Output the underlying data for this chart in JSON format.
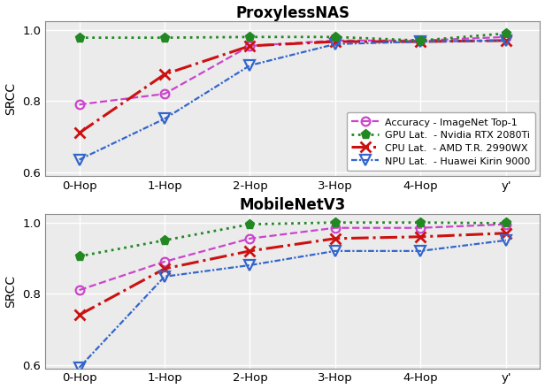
{
  "x_labels": [
    "0-Hop",
    "1-Hop",
    "2-Hop",
    "3-Hop",
    "4-Hop",
    "y'"
  ],
  "proxyless": {
    "title": "ProxylessNAS",
    "accuracy": [
      0.79,
      0.82,
      0.955,
      0.97,
      0.97,
      0.98
    ],
    "gpu_lat": [
      0.978,
      0.978,
      0.98,
      0.98,
      0.97,
      0.99
    ],
    "cpu_lat": [
      0.71,
      0.875,
      0.955,
      0.967,
      0.967,
      0.97
    ],
    "npu_lat": [
      0.635,
      0.75,
      0.9,
      0.96,
      0.967,
      0.97
    ]
  },
  "mobilenetv3": {
    "title": "MobileNetV3",
    "accuracy": [
      0.81,
      0.89,
      0.955,
      0.985,
      0.985,
      0.995
    ],
    "gpu_lat": [
      0.905,
      0.95,
      0.995,
      1.0,
      1.0,
      0.998
    ],
    "cpu_lat": [
      0.74,
      0.87,
      0.92,
      0.955,
      0.96,
      0.97
    ],
    "npu_lat": [
      0.592,
      0.848,
      0.88,
      0.92,
      0.92,
      0.95
    ]
  },
  "colors": {
    "accuracy": "#CC44CC",
    "gpu_lat": "#228822",
    "cpu_lat": "#CC1111",
    "npu_lat": "#3366CC"
  },
  "legend_labels": {
    "accuracy": "Accuracy - ImageNet Top-1",
    "gpu_lat": "GPU Lat.  - Nvidia RTX 2080Ti",
    "cpu_lat": "CPU Lat.  - AMD T.R. 2990WX",
    "npu_lat": "NPU Lat.  - Huawei Kirin 9000"
  },
  "ylim": [
    0.59,
    1.025
  ],
  "yticks": [
    0.6,
    0.8,
    1.0
  ],
  "ylabel": "SRCC",
  "background_color": "#ebebeb"
}
